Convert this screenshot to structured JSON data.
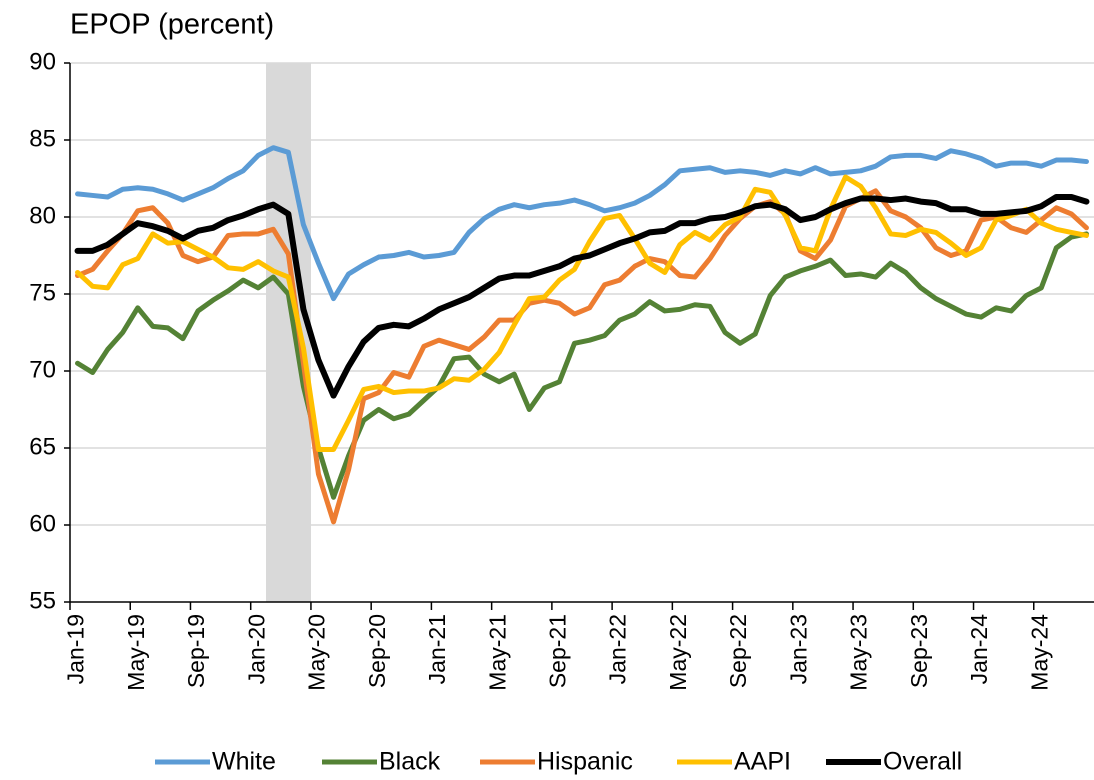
{
  "chart_data": {
    "type": "line",
    "title": "EPOP (percent)",
    "categories": [
      "Jan-19",
      null,
      null,
      null,
      "May-19",
      null,
      null,
      null,
      "Sep-19",
      null,
      null,
      null,
      "Jan-20",
      null,
      null,
      null,
      "May-20",
      null,
      null,
      null,
      "Sep-20",
      null,
      null,
      null,
      "Jan-21",
      null,
      null,
      null,
      "May-21",
      null,
      null,
      null,
      "Sep-21",
      null,
      null,
      null,
      "Jan-22",
      null,
      null,
      null,
      "May-22",
      null,
      null,
      null,
      "Sep-22",
      null,
      null,
      null,
      "Jan-23",
      null,
      null,
      null,
      "May-23",
      null,
      null,
      null,
      "Sep-23",
      null,
      null,
      null,
      "Jan-24",
      null,
      null,
      null,
      "May-24",
      null,
      null,
      null
    ],
    "series": [
      {
        "name": "White",
        "color": "#5b9bd5",
        "values": [
          81.5,
          81.4,
          81.3,
          81.8,
          81.9,
          81.8,
          81.5,
          81.1,
          81.5,
          81.9,
          82.5,
          83.0,
          84.0,
          84.5,
          84.2,
          79.5,
          77.0,
          74.7,
          76.3,
          76.9,
          77.4,
          77.5,
          77.7,
          77.4,
          77.5,
          77.7,
          79.0,
          79.9,
          80.5,
          80.8,
          80.6,
          80.8,
          80.9,
          81.1,
          80.8,
          80.4,
          80.6,
          80.9,
          81.4,
          82.1,
          83.0,
          83.1,
          83.2,
          82.9,
          83.0,
          82.9,
          82.7,
          83.0,
          82.8,
          83.2,
          82.8,
          82.9,
          83.0,
          83.3,
          83.9,
          84.0,
          84.0,
          83.8,
          84.3,
          84.1,
          83.8,
          83.3,
          83.5,
          83.5,
          83.3,
          83.7,
          83.7,
          83.6
        ]
      },
      {
        "name": "Black",
        "color": "#548235",
        "values": [
          70.5,
          69.9,
          71.4,
          72.5,
          74.1,
          72.9,
          72.8,
          72.1,
          73.9,
          74.6,
          75.2,
          75.9,
          75.4,
          76.1,
          75.0,
          69.0,
          65.0,
          61.8,
          64.5,
          66.8,
          67.5,
          66.9,
          67.2,
          68.1,
          69.0,
          70.8,
          70.9,
          69.8,
          69.3,
          69.8,
          67.5,
          68.9,
          69.3,
          71.8,
          72.0,
          72.3,
          73.3,
          73.7,
          74.5,
          73.9,
          74.0,
          74.3,
          74.2,
          72.5,
          71.8,
          72.4,
          74.9,
          76.1,
          76.5,
          76.8,
          77.2,
          76.2,
          76.3,
          76.1,
          77.0,
          76.4,
          75.4,
          74.7,
          74.2,
          73.7,
          73.5,
          74.1,
          73.9,
          74.9,
          75.4,
          78.0,
          78.7,
          78.9
        ]
      },
      {
        "name": "Hispanic",
        "color": "#ed7d31",
        "values": [
          76.2,
          76.6,
          77.8,
          78.9,
          80.4,
          80.6,
          79.6,
          77.5,
          77.1,
          77.4,
          78.8,
          78.9,
          78.9,
          79.2,
          77.6,
          70.5,
          63.3,
          60.2,
          63.6,
          68.2,
          68.6,
          69.9,
          69.6,
          71.6,
          72.0,
          71.7,
          71.4,
          72.2,
          73.3,
          73.3,
          74.4,
          74.6,
          74.4,
          73.7,
          74.1,
          75.6,
          75.9,
          76.8,
          77.3,
          77.1,
          76.2,
          76.1,
          77.3,
          78.8,
          79.9,
          80.7,
          81.0,
          80.2,
          77.8,
          77.3,
          78.5,
          80.7,
          81.2,
          81.7,
          80.4,
          80.0,
          79.3,
          78.0,
          77.5,
          77.8,
          79.8,
          80.0,
          79.3,
          79.0,
          79.8,
          80.6,
          80.2,
          79.3
        ]
      },
      {
        "name": "AAPI",
        "color": "#ffc000",
        "values": [
          76.4,
          75.5,
          75.4,
          76.9,
          77.3,
          78.9,
          78.3,
          78.4,
          77.9,
          77.4,
          76.7,
          76.6,
          77.1,
          76.5,
          76.1,
          71.5,
          64.9,
          64.9,
          66.8,
          68.8,
          69.0,
          68.6,
          68.7,
          68.7,
          68.9,
          69.5,
          69.4,
          70.1,
          71.2,
          73.0,
          74.7,
          74.8,
          75.9,
          76.6,
          78.4,
          79.9,
          80.1,
          78.6,
          77.0,
          76.4,
          78.2,
          79.0,
          78.5,
          79.5,
          80.0,
          81.8,
          81.6,
          80.1,
          78.0,
          77.8,
          80.5,
          82.6,
          82.0,
          80.6,
          78.9,
          78.8,
          79.2,
          79.0,
          78.3,
          77.5,
          78.0,
          79.8,
          80.1,
          80.5,
          79.6,
          79.2,
          79.0,
          78.8
        ]
      },
      {
        "name": "Overall",
        "color": "#000000",
        "values": [
          77.8,
          77.8,
          78.2,
          78.9,
          79.6,
          79.4,
          79.1,
          78.6,
          79.1,
          79.3,
          79.8,
          80.1,
          80.5,
          80.8,
          80.2,
          74.0,
          70.7,
          68.4,
          70.3,
          71.9,
          72.8,
          73.0,
          72.9,
          73.4,
          74.0,
          74.4,
          74.8,
          75.4,
          76.0,
          76.2,
          76.2,
          76.5,
          76.8,
          77.3,
          77.5,
          77.9,
          78.3,
          78.6,
          79.0,
          79.1,
          79.6,
          79.6,
          79.9,
          80.0,
          80.3,
          80.7,
          80.8,
          80.5,
          79.8,
          80.0,
          80.5,
          80.9,
          81.2,
          81.2,
          81.1,
          81.2,
          81.0,
          80.9,
          80.5,
          80.5,
          80.2,
          80.2,
          80.3,
          80.4,
          80.7,
          81.3,
          81.3,
          81.0
        ]
      }
    ],
    "ylim": [
      55,
      90
    ],
    "yticks": [
      55,
      60,
      65,
      70,
      75,
      80,
      85,
      90
    ],
    "grid": true
  }
}
